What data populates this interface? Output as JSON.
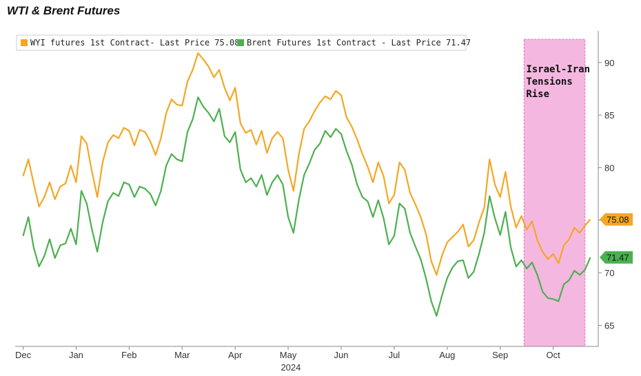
{
  "chart_data": {
    "type": "line",
    "title": "WTI & Brent Futures",
    "x_ticks": [
      "Dec",
      "Jan",
      "Feb",
      "Mar",
      "Apr",
      "May",
      "Jun",
      "Jul",
      "Aug",
      "Sep",
      "Oct"
    ],
    "x_year_label": "2024",
    "ylim": [
      63,
      93
    ],
    "y_ticks": [
      65,
      70,
      75,
      80,
      85,
      90
    ],
    "grid": false,
    "legend_placement": "top-left",
    "axis_side": "right",
    "annotation": {
      "text_lines": [
        "Israel-Iran",
        "Tensions",
        "Rise"
      ],
      "x_range": [
        9.45,
        10.6
      ]
    },
    "series": [
      {
        "name": "WYI futures 1st Contract- Last Price 75.08",
        "color": "#f5a623",
        "last_label": "75.08",
        "x": [
          0,
          0.1,
          0.2,
          0.3,
          0.4,
          0.5,
          0.6,
          0.7,
          0.8,
          0.9,
          1.0,
          1.1,
          1.2,
          1.3,
          1.4,
          1.5,
          1.6,
          1.7,
          1.8,
          1.9,
          2.0,
          2.1,
          2.2,
          2.3,
          2.4,
          2.5,
          2.6,
          2.7,
          2.8,
          2.9,
          3.0,
          3.1,
          3.2,
          3.3,
          3.4,
          3.5,
          3.6,
          3.7,
          3.8,
          3.9,
          4.0,
          4.1,
          4.2,
          4.3,
          4.4,
          4.5,
          4.6,
          4.7,
          4.8,
          4.9,
          5.0,
          5.1,
          5.2,
          5.3,
          5.4,
          5.5,
          5.6,
          5.7,
          5.8,
          5.9,
          6.0,
          6.1,
          6.2,
          6.3,
          6.4,
          6.5,
          6.6,
          6.7,
          6.8,
          6.9,
          7.0,
          7.1,
          7.2,
          7.3,
          7.4,
          7.5,
          7.6,
          7.7,
          7.8,
          7.9,
          8.0,
          8.1,
          8.2,
          8.3,
          8.4,
          8.5,
          8.6,
          8.7,
          8.8,
          8.9,
          9.0,
          9.1,
          9.2,
          9.3,
          9.4,
          9.5,
          9.6,
          9.7,
          9.8,
          9.9,
          10.0,
          10.1,
          10.2,
          10.3,
          10.4,
          10.5,
          10.6,
          10.7
        ],
        "values": [
          79.2,
          80.8,
          78.5,
          76.3,
          77.2,
          78.6,
          77.0,
          78.2,
          78.5,
          80.2,
          78.6,
          83.0,
          82.3,
          79.6,
          77.2,
          80.5,
          82.4,
          83.1,
          82.8,
          83.8,
          83.5,
          82.1,
          83.6,
          83.4,
          82.5,
          81.2,
          82.8,
          85.2,
          86.5,
          86.0,
          85.9,
          88.2,
          89.3,
          90.9,
          90.3,
          89.6,
          88.6,
          89.3,
          87.6,
          86.4,
          87.6,
          84.2,
          83.3,
          83.6,
          82.2,
          83.5,
          81.4,
          82.8,
          83.4,
          82.8,
          79.8,
          77.8,
          81.2,
          83.7,
          84.4,
          85.4,
          86.2,
          86.8,
          86.5,
          87.3,
          86.9,
          84.8,
          83.9,
          82.7,
          81.3,
          80.1,
          78.6,
          80.5,
          79.2,
          76.6,
          77.4,
          80.5,
          79.8,
          77.6,
          76.5,
          75.3,
          73.7,
          71.1,
          69.8,
          71.6,
          72.9,
          73.4,
          73.9,
          74.6,
          72.5,
          73.1,
          74.8,
          76.2,
          80.8,
          78.4,
          77.2,
          79.6,
          76.3,
          74.3,
          75.4,
          74.1,
          74.9,
          73.1,
          72.0,
          71.3,
          71.8,
          70.9,
          72.6,
          73.2,
          74.3,
          73.8,
          74.5,
          75.08
        ],
        "points_hint": "daily closes approximated"
      },
      {
        "name": "Brent Futures 1st Contract - Last Price 71.47",
        "color": "#4caf50",
        "last_label": "71.47",
        "x": [
          0,
          0.1,
          0.2,
          0.3,
          0.4,
          0.5,
          0.6,
          0.7,
          0.8,
          0.9,
          1.0,
          1.1,
          1.2,
          1.3,
          1.4,
          1.5,
          1.6,
          1.7,
          1.8,
          1.9,
          2.0,
          2.1,
          2.2,
          2.3,
          2.4,
          2.5,
          2.6,
          2.7,
          2.8,
          2.9,
          3.0,
          3.1,
          3.2,
          3.3,
          3.4,
          3.5,
          3.6,
          3.7,
          3.8,
          3.9,
          4.0,
          4.1,
          4.2,
          4.3,
          4.4,
          4.5,
          4.6,
          4.7,
          4.8,
          4.9,
          5.0,
          5.1,
          5.2,
          5.3,
          5.4,
          5.5,
          5.6,
          5.7,
          5.8,
          5.9,
          6.0,
          6.1,
          6.2,
          6.3,
          6.4,
          6.5,
          6.6,
          6.7,
          6.8,
          6.9,
          7.0,
          7.1,
          7.2,
          7.3,
          7.4,
          7.5,
          7.6,
          7.7,
          7.8,
          7.9,
          8.0,
          8.1,
          8.2,
          8.3,
          8.4,
          8.5,
          8.6,
          8.7,
          8.8,
          8.9,
          9.0,
          9.1,
          9.2,
          9.3,
          9.4,
          9.5,
          9.6,
          9.7,
          9.8,
          9.9,
          10.0,
          10.1,
          10.2,
          10.3,
          10.4,
          10.5,
          10.6,
          10.7
        ],
        "values": [
          73.5,
          75.3,
          72.4,
          70.6,
          71.6,
          73.2,
          71.4,
          72.6,
          72.8,
          74.2,
          72.7,
          77.8,
          76.6,
          74.1,
          72.0,
          74.8,
          76.8,
          77.6,
          77.3,
          78.6,
          78.4,
          77.2,
          78.2,
          78.0,
          77.5,
          76.4,
          77.8,
          80.2,
          81.3,
          80.8,
          80.6,
          83.4,
          84.6,
          86.7,
          85.8,
          85.2,
          84.4,
          85.6,
          83.0,
          82.4,
          83.4,
          79.8,
          78.6,
          79.0,
          78.2,
          79.3,
          77.4,
          78.6,
          79.3,
          78.4,
          75.3,
          73.8,
          76.9,
          79.3,
          80.4,
          81.7,
          82.3,
          83.5,
          82.9,
          83.7,
          83.2,
          81.6,
          80.3,
          78.4,
          77.2,
          76.8,
          75.3,
          76.9,
          75.2,
          72.7,
          73.5,
          76.6,
          76.1,
          73.8,
          72.5,
          71.3,
          69.5,
          67.3,
          65.9,
          67.8,
          69.5,
          70.5,
          71.1,
          71.2,
          69.5,
          70.1,
          71.8,
          73.8,
          77.3,
          75.2,
          73.6,
          75.8,
          72.4,
          70.6,
          71.2,
          70.4,
          71.0,
          69.8,
          68.2,
          67.6,
          67.5,
          67.3,
          68.9,
          69.3,
          70.2,
          69.8,
          70.3,
          71.47
        ]
      }
    ]
  }
}
